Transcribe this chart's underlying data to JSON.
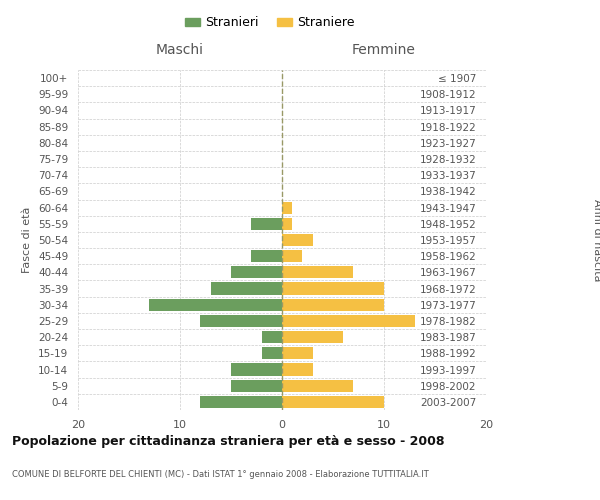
{
  "age_groups": [
    "0-4",
    "5-9",
    "10-14",
    "15-19",
    "20-24",
    "25-29",
    "30-34",
    "35-39",
    "40-44",
    "45-49",
    "50-54",
    "55-59",
    "60-64",
    "65-69",
    "70-74",
    "75-79",
    "80-84",
    "85-89",
    "90-94",
    "95-99",
    "100+"
  ],
  "birth_years": [
    "2003-2007",
    "1998-2002",
    "1993-1997",
    "1988-1992",
    "1983-1987",
    "1978-1982",
    "1973-1977",
    "1968-1972",
    "1963-1967",
    "1958-1962",
    "1953-1957",
    "1948-1952",
    "1943-1947",
    "1938-1942",
    "1933-1937",
    "1928-1932",
    "1923-1927",
    "1918-1922",
    "1913-1917",
    "1908-1912",
    "≤ 1907"
  ],
  "maschi": [
    8,
    5,
    5,
    2,
    2,
    8,
    13,
    7,
    5,
    3,
    0,
    3,
    0,
    0,
    0,
    0,
    0,
    0,
    0,
    0,
    0
  ],
  "femmine": [
    10,
    7,
    3,
    3,
    6,
    13,
    10,
    10,
    7,
    2,
    3,
    1,
    1,
    0,
    0,
    0,
    0,
    0,
    0,
    0,
    0
  ],
  "color_maschi": "#6b9e5e",
  "color_femmine": "#f5c043",
  "title": "Popolazione per cittadinanza straniera per età e sesso - 2008",
  "subtitle": "COMUNE DI BELFORTE DEL CHIENTI (MC) - Dati ISTAT 1° gennaio 2008 - Elaborazione TUTTITALIA.IT",
  "ylabel_left": "Fasce di età",
  "ylabel_right": "Anni di nascita",
  "xlabel_maschi": "Maschi",
  "xlabel_femmine": "Femmine",
  "legend_maschi": "Stranieri",
  "legend_femmine": "Straniere",
  "xlim": 20,
  "background_color": "#ffffff",
  "grid_color": "#cccccc",
  "centerline_color": "#999966"
}
